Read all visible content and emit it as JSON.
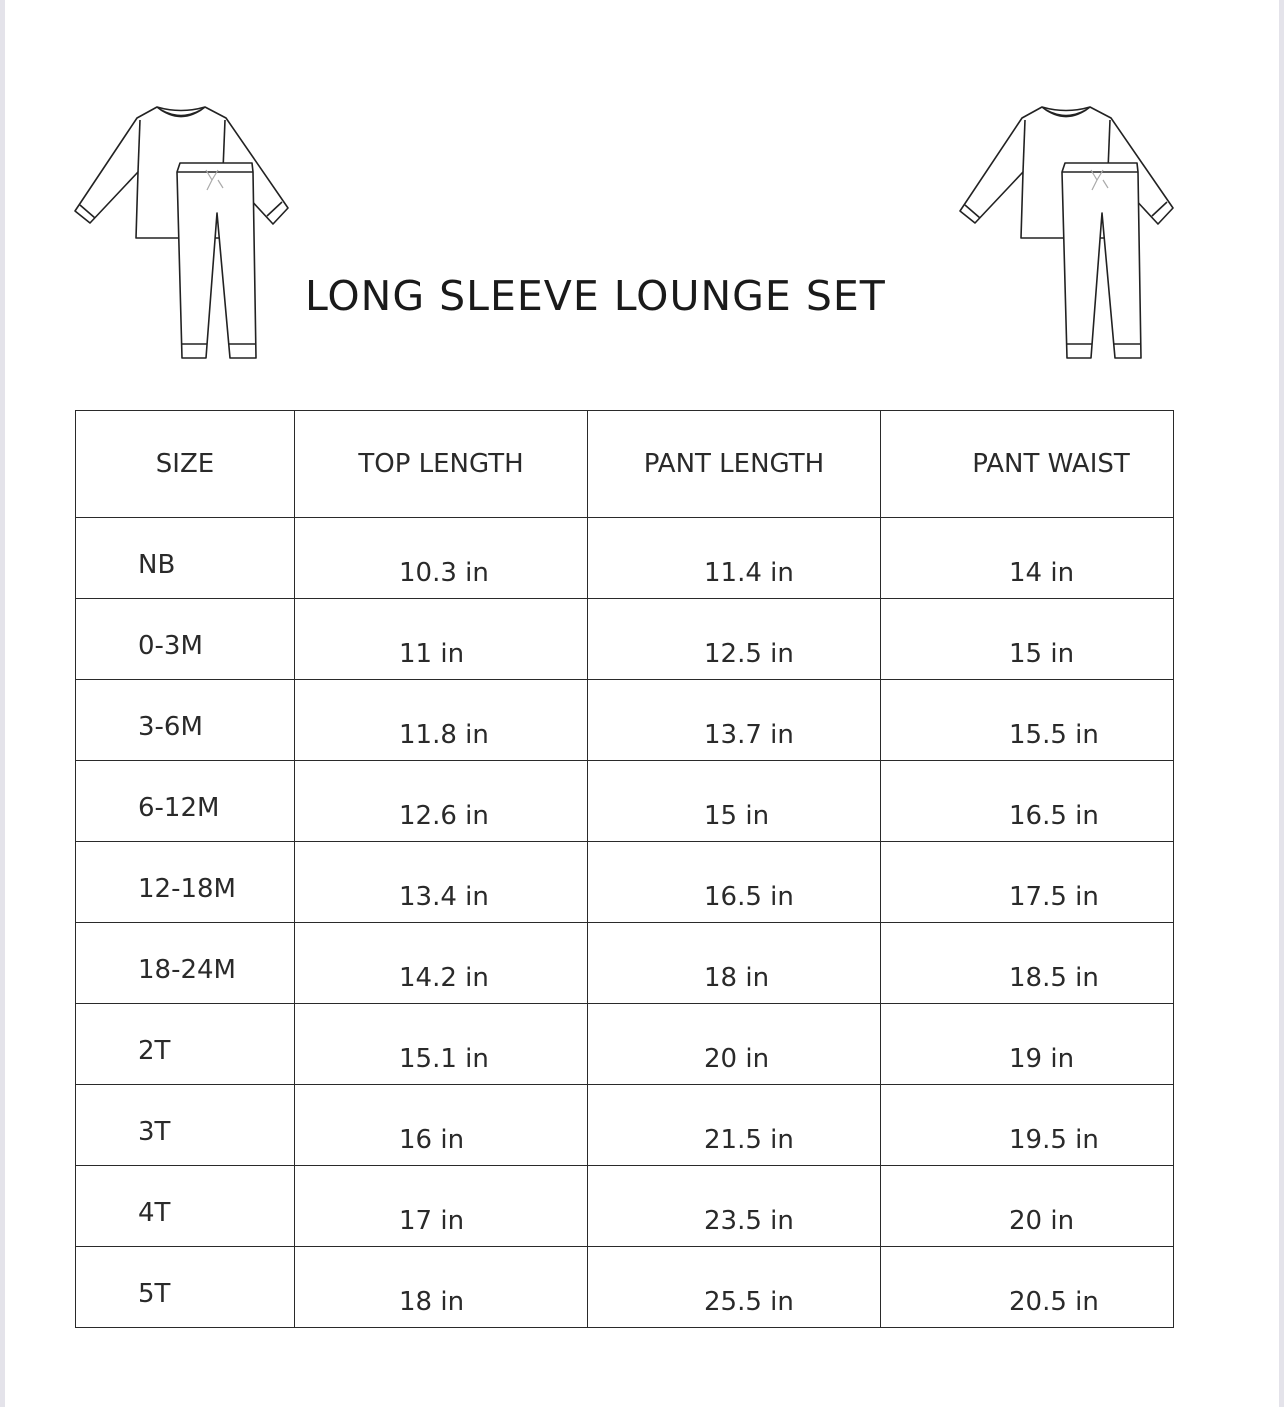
{
  "title": "LONG SLEEVE LOUNGE SET",
  "illustrations": [
    "lounge-set-icon",
    "lounge-set-icon"
  ],
  "table": {
    "headers": [
      "SIZE",
      "TOP LENGTH",
      "PANT LENGTH",
      "PANT WAIST"
    ],
    "rows": [
      [
        "NB",
        "10.3 in",
        "11.4 in",
        "14 in"
      ],
      [
        "0-3M",
        "11 in",
        "12.5 in",
        "15 in"
      ],
      [
        "3-6M",
        "11.8 in",
        "13.7 in",
        "15.5 in"
      ],
      [
        "6-12M",
        "12.6 in",
        "15 in",
        "16.5 in"
      ],
      [
        "12-18M",
        "13.4 in",
        "16.5 in",
        "17.5 in"
      ],
      [
        "18-24M",
        "14.2 in",
        "18 in",
        "18.5 in"
      ],
      [
        "2T",
        "15.1 in",
        "20 in",
        "19 in"
      ],
      [
        "3T",
        "16 in",
        "21.5 in",
        "19.5 in"
      ],
      [
        "4T",
        "17 in",
        "23.5 in",
        "20 in"
      ],
      [
        "5T",
        "18 in",
        "25.5 in",
        "20.5 in"
      ]
    ]
  }
}
